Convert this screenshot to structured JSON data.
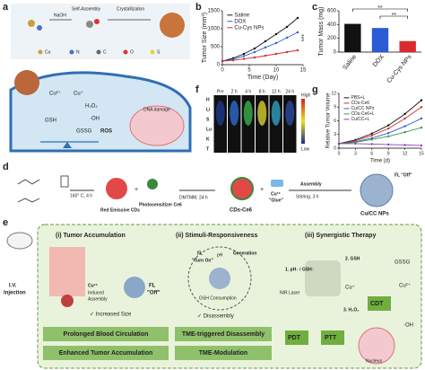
{
  "panels": [
    "a",
    "b",
    "c",
    "d",
    "e",
    "f",
    "g"
  ],
  "panel_a": {
    "steps": [
      "NaOH",
      "Self-Assembly",
      "Crystallization"
    ],
    "elements": [
      "Cu",
      "N",
      "C",
      "O",
      "S"
    ],
    "cell": [
      "Cu²⁺",
      "Cu⁺",
      "H₂O₂",
      "·OH",
      "GSH",
      "GSSG",
      "ROS",
      "DNA damage"
    ]
  },
  "panel_f": {
    "columns": [
      "Pre",
      "2 h",
      "4 h",
      "8 h",
      "12 h",
      "24 h"
    ],
    "rows": [
      "H",
      "Li",
      "S",
      "Lu",
      "K",
      "T"
    ],
    "scale": [
      "High",
      "Low"
    ]
  },
  "panel_d": {
    "texts": [
      "160° C, 4 h",
      "Red Emissive CDs",
      "Photosensitizer Ce6",
      "DMTMM, 24 h",
      "CDs-Ce6",
      "Cu²⁺",
      "\"Glue\"",
      "Assembly",
      "Stirring, 3 h",
      "FL \"Off\"",
      "Cu/CC NPs"
    ]
  },
  "panel_e": {
    "injection": [
      "I.V.",
      "Injection"
    ],
    "titles": [
      "(i) Tumor Accumulation",
      "(ii) Stimuli-Responsiveness",
      "(iii) Synergistic Therapy"
    ],
    "part1": [
      "Cu²⁺",
      "Induced",
      "Assembly",
      "FL",
      "\"Off\"",
      "✓ Increased Size"
    ],
    "part2": [
      "FL",
      "\"Turn On\"",
      "pH",
      "Generation",
      "GSH Consumption",
      "✓ Disassembly"
    ],
    "part3": [
      "1. pH↓ / GSH↑",
      "2. GSH",
      "GSSG",
      "NIR Laser",
      "Cu⁺",
      "Cu²⁺",
      "3. H₂O₂",
      "·OH",
      "CDT",
      "PDT",
      "PTT",
      "Nucleus"
    ],
    "boxes": [
      "Prolonged Blood Circulation",
      "Enhanced Tumor Accumulation",
      "TME-triggered Disassembly",
      "TME-Modulation"
    ]
  },
  "chart_data": [
    {
      "type": "line",
      "ylabel": "Tumor Size (mm³)",
      "xlabel": "Time (Day)",
      "x": [
        0,
        2,
        4,
        6,
        8,
        10,
        12,
        14
      ],
      "xlim": [
        0,
        15
      ],
      "xticks": [
        0,
        5,
        10,
        15
      ],
      "ylim": [
        0,
        1500
      ],
      "yticks": [
        0,
        500,
        1000,
        1500
      ],
      "legend": "upper left",
      "annotations": [
        "***"
      ],
      "series": [
        {
          "name": "Saline",
          "color": "#111111",
          "values": [
            100,
            180,
            300,
            450,
            650,
            850,
            1050,
            1300
          ]
        },
        {
          "name": "DOX",
          "color": "#2b5cd6",
          "values": [
            100,
            150,
            240,
            350,
            480,
            600,
            750,
            900
          ]
        },
        {
          "name": "Cu-Cys NPs",
          "color": "#d92b2b",
          "values": [
            100,
            120,
            160,
            200,
            250,
            300,
            350,
            400
          ]
        }
      ]
    },
    {
      "type": "bar",
      "ylabel": "Tumor Mass (mg)",
      "categories": [
        "Saline",
        "DOX",
        "Cu-Cys NPs"
      ],
      "values": [
        410,
        350,
        160
      ],
      "colors": [
        "#111111",
        "#2b5cd6",
        "#d92b2b"
      ],
      "ylim": [
        0,
        600
      ],
      "yticks": [
        0,
        200,
        400,
        600
      ],
      "annotations": [
        "**",
        "**"
      ]
    },
    {
      "type": "line",
      "ylabel": "Relative Tumor Volume",
      "xlabel": "Time (d)",
      "x": [
        0,
        3,
        6,
        9,
        12,
        15
      ],
      "xlim": [
        0,
        15
      ],
      "xticks": [
        0,
        3,
        6,
        9,
        12,
        15
      ],
      "ylim": [
        0,
        12
      ],
      "yticks": [
        0,
        3,
        6,
        9,
        12
      ],
      "legend": "upper left",
      "series": [
        {
          "name": "PBS+L",
          "color": "#111111",
          "values": [
            1,
            1.8,
            3.2,
            5,
            7.5,
            10.5
          ]
        },
        {
          "name": "CDs-Ce6",
          "color": "#d92b2b",
          "values": [
            1,
            1.6,
            2.8,
            4.3,
            6.5,
            9
          ]
        },
        {
          "name": "Cu/CC NPs",
          "color": "#2b5cd6",
          "values": [
            1,
            1.4,
            2.2,
            3.3,
            4.8,
            6.5
          ]
        },
        {
          "name": "CDs-Ce6+L",
          "color": "#2f9e3a",
          "values": [
            1,
            1.3,
            1.9,
            2.6,
            3.5,
            4.5
          ]
        },
        {
          "name": "Cu/CC+L",
          "color": "#8e3fb5",
          "values": [
            1,
            1.0,
            0.9,
            0.8,
            0.7,
            0.6
          ]
        }
      ]
    }
  ]
}
